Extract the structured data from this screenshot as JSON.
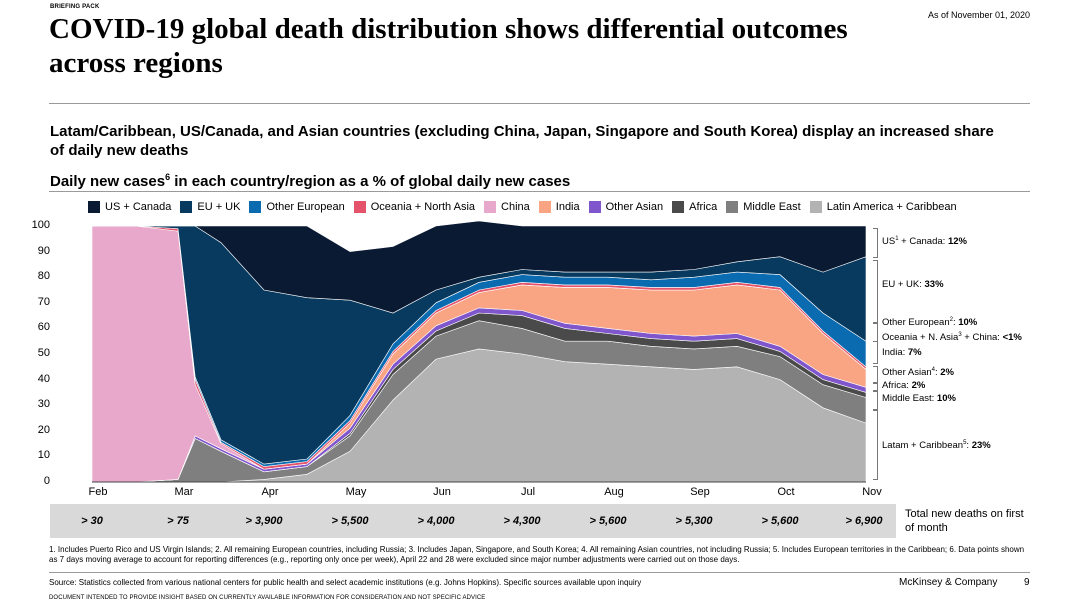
{
  "header": {
    "briefing": "BRIEFING PACK",
    "as_of": "As of November 01, 2020",
    "title": "COVID-19 global death distribution shows differential outcomes across regions"
  },
  "subtitle": "Latam/Caribbean, US/Canada, and Asian countries (excluding China, Japan, Singapore and South Korea) display an increased share of daily new deaths",
  "chart_heading": {
    "text": "Daily new cases",
    "sup": "6",
    "rest": " in each country/region as a % of global daily new cases"
  },
  "legend": [
    {
      "label": "US + Canada",
      "color": "#0a1a33"
    },
    {
      "label": "EU + UK",
      "color": "#083a5f"
    },
    {
      "label": "Other European",
      "color": "#0b6bb0"
    },
    {
      "label": "Oceania + North Asia",
      "color": "#e5536a"
    },
    {
      "label": "China",
      "color": "#e8a8cc"
    },
    {
      "label": "India",
      "color": "#f9a483"
    },
    {
      "label": "Other Asian",
      "color": "#7f56cc"
    },
    {
      "label": "Africa",
      "color": "#4a4a4a"
    },
    {
      "label": "Middle East",
      "color": "#7f7f7f"
    },
    {
      "label": "Latin America + Caribbean",
      "color": "#b3b3b3"
    }
  ],
  "annotations": [
    {
      "label": "US",
      "sup": "1",
      "rest": " + Canada: ",
      "value": "12%"
    },
    {
      "label": "EU + UK: ",
      "sup": "",
      "rest": "",
      "value": "33%"
    },
    {
      "label": "Other European",
      "sup": "2",
      "rest": ": ",
      "value": "10%"
    },
    {
      "label": "Oceania + N. Asia",
      "sup": "3",
      "rest": " + China: ",
      "value": "<1%"
    },
    {
      "label": "India: ",
      "sup": "",
      "rest": "",
      "value": "7%"
    },
    {
      "label": "Other Asian",
      "sup": "4",
      "rest": ": ",
      "value": "2%"
    },
    {
      "label": "Africa: ",
      "sup": "",
      "rest": "",
      "value": "2%"
    },
    {
      "label": "Middle East: ",
      "sup": "",
      "rest": "",
      "value": "10%"
    },
    {
      "label": "Latam + Caribbean",
      "sup": "5",
      "rest": ": ",
      "value": "23%"
    }
  ],
  "deaths_band": {
    "values": [
      "> 30",
      "> 75",
      "> 3,900",
      "> 5,500",
      "> 4,000",
      "> 4,300",
      "> 5,600",
      "> 5,300",
      "> 5,600",
      "> 6,900"
    ],
    "label": "Total new deaths on first of month"
  },
  "footnotes": "1. Includes Puerto Rico and US Virgin Islands; 2. All remaining European countries, including Russia; 3. Includes Japan, Singapore, and South Korea; 4. All remaining Asian countries, not including Russia; 5. Includes European territories in the Caribbean; 6. Data points shown as 7 days moving average to account for reporting differences (e.g., reporting only once per week), April 22 and 28 were excluded since major number adjustments were carried out on those days.",
  "source": "Source: Statistics collected from various national centers for public health and select academic institutions (e.g. Johns Hopkins). Specific sources available upon inquiry",
  "brand": "McKinsey & Company",
  "page_number": "9",
  "disclaimer": "DOCUMENT INTENDED TO PROVIDE INSIGHT BASED ON CURRENTLY AVAILABLE INFORMATION FOR CONSIDERATION AND NOT SPECIFIC ADVICE",
  "chart_data": {
    "type": "area",
    "stacked": true,
    "title": "Daily new cases in each country/region as a % of global daily new cases",
    "ylabel": "%",
    "ylim": [
      0,
      100
    ],
    "yticks": [
      0,
      10,
      20,
      30,
      40,
      50,
      60,
      70,
      80,
      90,
      100
    ],
    "x_months": [
      "Feb",
      "Mar",
      "Apr",
      "May",
      "Jun",
      "Jul",
      "Aug",
      "Sep",
      "Oct",
      "Nov"
    ],
    "x": [
      0,
      0.5,
      1.0,
      1.2,
      1.5,
      2.0,
      2.5,
      3.0,
      3.5,
      4.0,
      4.5,
      5.0,
      5.5,
      6.0,
      6.5,
      7.0,
      7.5,
      8.0,
      8.5,
      9.0
    ],
    "series": [
      {
        "name": "Latin America + Caribbean",
        "color": "#b3b3b3",
        "values": [
          0,
          0,
          0,
          0,
          0,
          1,
          3,
          12,
          32,
          48,
          52,
          50,
          47,
          46,
          45,
          44,
          45,
          40,
          29,
          23
        ]
      },
      {
        "name": "Middle East",
        "color": "#7f7f7f",
        "values": [
          0,
          0,
          1,
          17,
          12,
          3,
          3,
          6,
          10,
          9,
          11,
          10,
          8,
          9,
          8,
          8,
          8,
          9,
          9,
          10
        ]
      },
      {
        "name": "Africa",
        "color": "#4a4a4a",
        "values": [
          0,
          0,
          0,
          0,
          0,
          0,
          0,
          1,
          2,
          2,
          3,
          5,
          5,
          3,
          3,
          3,
          3,
          2,
          2,
          2
        ]
      },
      {
        "name": "Other Asian",
        "color": "#7f56cc",
        "values": [
          0,
          0,
          0,
          1,
          1,
          1,
          1,
          2,
          2,
          2,
          2,
          2,
          2,
          2,
          2,
          2,
          2,
          2,
          2,
          2
        ]
      },
      {
        "name": "India",
        "color": "#f9a483",
        "values": [
          0,
          0,
          0,
          0,
          0,
          0,
          0,
          2,
          4,
          5,
          6,
          10,
          14,
          16,
          17,
          18,
          19,
          22,
          16,
          7
        ]
      },
      {
        "name": "China",
        "color": "#e8a8cc",
        "values": [
          100,
          100,
          97,
          20,
          2,
          0,
          0,
          0,
          0,
          0,
          0,
          0,
          0,
          0,
          0,
          0,
          0,
          0,
          0,
          0
        ]
      },
      {
        "name": "Oceania + North Asia",
        "color": "#e5536a",
        "values": [
          0,
          0,
          1,
          2,
          0.5,
          1,
          1,
          1,
          1,
          1,
          1,
          1,
          1,
          1,
          1,
          1,
          1,
          1,
          1,
          1
        ]
      },
      {
        "name": "Other European",
        "color": "#0b6bb0",
        "values": [
          0,
          0,
          0,
          1,
          1,
          1,
          1,
          2,
          3,
          3,
          3,
          3,
          3,
          3,
          3,
          4,
          4,
          5,
          7,
          10
        ]
      },
      {
        "name": "EU + UK",
        "color": "#083a5f",
        "values": [
          0,
          0,
          1,
          59,
          77,
          68,
          63,
          45,
          12,
          5,
          2,
          2,
          2,
          2,
          3,
          3,
          4,
          7,
          16,
          33
        ]
      },
      {
        "name": "US + Canada",
        "color": "#0a1a33",
        "values": [
          0,
          0,
          0,
          0,
          6.5,
          25,
          28,
          19,
          26,
          25,
          22,
          17,
          18,
          18,
          18,
          17,
          14,
          12,
          18,
          12
        ]
      }
    ]
  }
}
